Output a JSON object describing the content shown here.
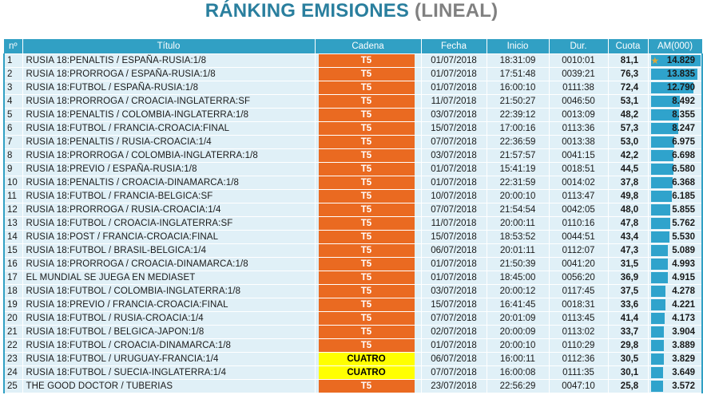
{
  "title": {
    "main": "RÁNKING EMISIONES",
    "sub": "(LINEAL)",
    "main_color": "#2a7f9e",
    "sub_color": "#808080"
  },
  "colors": {
    "header_bg": "#31a0c4",
    "row_bg": "#e0f0f7",
    "t5": "#ea6a21",
    "cuatro": "#ffff00",
    "bar": "#2fa3cc"
  },
  "columns": {
    "num": "nº",
    "titulo": "Título",
    "cadena": "Cadena",
    "fecha": "Fecha",
    "inicio": "Inicio",
    "dur": "Dur.",
    "cuota": "Cuota",
    "am": "AM(000)"
  },
  "rows": [
    {
      "n": "1",
      "titulo": "RUSIA 18:PENALTIS / ESPAÑA-RUSIA:1/8",
      "cadena": "T5",
      "fecha": "01/07/2018",
      "inicio": "18:31:09",
      "dur": "0010:01",
      "cuota": "81,1",
      "am": "14.829",
      "am_value": 14829,
      "icon": "star-icon"
    },
    {
      "n": "2",
      "titulo": "RUSIA 18:PRORROGA / ESPAÑA-RUSIA:1/8",
      "cadena": "T5",
      "fecha": "01/07/2018",
      "inicio": "17:51:48",
      "dur": "0039:21",
      "cuota": "76,3",
      "am": "13.835",
      "am_value": 13835
    },
    {
      "n": "3",
      "titulo": "RUSIA 18:FUTBOL / ESPAÑA-RUSIA:1/8",
      "cadena": "T5",
      "fecha": "01/07/2018",
      "inicio": "16:00:10",
      "dur": "0111:38",
      "cuota": "72,4",
      "am": "12.790",
      "am_value": 12790
    },
    {
      "n": "4",
      "titulo": "RUSIA 18:PRORROGA / CROACIA-INGLATERRA:SF",
      "cadena": "T5",
      "fecha": "11/07/2018",
      "inicio": "21:50:27",
      "dur": "0046:50",
      "cuota": "53,1",
      "am": "8.492",
      "am_value": 8492
    },
    {
      "n": "5",
      "titulo": "RUSIA 18:PENALTIS / COLOMBIA-INGLATERRA:1/8",
      "cadena": "T5",
      "fecha": "03/07/2018",
      "inicio": "22:39:12",
      "dur": "0013:09",
      "cuota": "48,2",
      "am": "8.355",
      "am_value": 8355
    },
    {
      "n": "6",
      "titulo": "RUSIA 18:FUTBOL / FRANCIA-CROACIA:FINAL",
      "cadena": "T5",
      "fecha": "15/07/2018",
      "inicio": "17:00:16",
      "dur": "0113:36",
      "cuota": "57,3",
      "am": "8.247",
      "am_value": 8247
    },
    {
      "n": "7",
      "titulo": "RUSIA 18:PENALTIS / RUSIA-CROACIA:1/4",
      "cadena": "T5",
      "fecha": "07/07/2018",
      "inicio": "22:36:59",
      "dur": "0013:38",
      "cuota": "53,0",
      "am": "6.975",
      "am_value": 6975
    },
    {
      "n": "8",
      "titulo": "RUSIA 18:PRORROGA / COLOMBIA-INGLATERRA:1/8",
      "cadena": "T5",
      "fecha": "03/07/2018",
      "inicio": "21:57:57",
      "dur": "0041:15",
      "cuota": "42,2",
      "am": "6.698",
      "am_value": 6698
    },
    {
      "n": "9",
      "titulo": "RUSIA 18:PREVIO / ESPAÑA-RUSIA:1/8",
      "cadena": "T5",
      "fecha": "01/07/2018",
      "inicio": "15:41:19",
      "dur": "0018:51",
      "cuota": "44,5",
      "am": "6.580",
      "am_value": 6580
    },
    {
      "n": "10",
      "titulo": "RUSIA 18:PENALTIS / CROACIA-DINAMARCA:1/8",
      "cadena": "T5",
      "fecha": "01/07/2018",
      "inicio": "22:31:59",
      "dur": "0014:02",
      "cuota": "37,8",
      "am": "6.368",
      "am_value": 6368
    },
    {
      "n": "11",
      "titulo": "RUSIA 18:FUTBOL / FRANCIA-BELGICA:SF",
      "cadena": "T5",
      "fecha": "10/07/2018",
      "inicio": "20:00:10",
      "dur": "0113:47",
      "cuota": "49,8",
      "am": "6.185",
      "am_value": 6185
    },
    {
      "n": "12",
      "titulo": "RUSIA 18:PRORROGA / RUSIA-CROACIA:1/4",
      "cadena": "T5",
      "fecha": "07/07/2018",
      "inicio": "21:54:54",
      "dur": "0042:05",
      "cuota": "48,0",
      "am": "5.855",
      "am_value": 5855
    },
    {
      "n": "13",
      "titulo": "RUSIA 18:FUTBOL / CROACIA-INGLATERRA:SF",
      "cadena": "T5",
      "fecha": "11/07/2018",
      "inicio": "20:00:11",
      "dur": "0110:16",
      "cuota": "47,8",
      "am": "5.762",
      "am_value": 5762
    },
    {
      "n": "14",
      "titulo": "RUSIA 18:POST / FRANCIA-CROACIA:FINAL",
      "cadena": "T5",
      "fecha": "15/07/2018",
      "inicio": "18:53:52",
      "dur": "0044:51",
      "cuota": "43,4",
      "am": "5.530",
      "am_value": 5530
    },
    {
      "n": "15",
      "titulo": "RUSIA 18:FUTBOL / BRASIL-BELGICA:1/4",
      "cadena": "T5",
      "fecha": "06/07/2018",
      "inicio": "20:01:11",
      "dur": "0112:07",
      "cuota": "47,3",
      "am": "5.089",
      "am_value": 5089
    },
    {
      "n": "16",
      "titulo": "RUSIA 18:PRORROGA / CROACIA-DINAMARCA:1/8",
      "cadena": "T5",
      "fecha": "01/07/2018",
      "inicio": "21:50:39",
      "dur": "0041:20",
      "cuota": "31,5",
      "am": "4.993",
      "am_value": 4993
    },
    {
      "n": "17",
      "titulo": "EL MUNDIAL SE JUEGA EN MEDIASET",
      "cadena": "T5",
      "fecha": "01/07/2018",
      "inicio": "18:45:00",
      "dur": "0056:20",
      "cuota": "36,9",
      "am": "4.915",
      "am_value": 4915
    },
    {
      "n": "18",
      "titulo": "RUSIA 18:FUTBOL / COLOMBIA-INGLATERRA:1/8",
      "cadena": "T5",
      "fecha": "03/07/2018",
      "inicio": "20:00:12",
      "dur": "0117:45",
      "cuota": "37,5",
      "am": "4.278",
      "am_value": 4278
    },
    {
      "n": "19",
      "titulo": "RUSIA 18:PREVIO / FRANCIA-CROACIA:FINAL",
      "cadena": "T5",
      "fecha": "15/07/2018",
      "inicio": "16:41:45",
      "dur": "0018:31",
      "cuota": "33,6",
      "am": "4.221",
      "am_value": 4221
    },
    {
      "n": "20",
      "titulo": "RUSIA 18:FUTBOL / RUSIA-CROACIA:1/4",
      "cadena": "T5",
      "fecha": "07/07/2018",
      "inicio": "20:01:09",
      "dur": "0113:45",
      "cuota": "41,4",
      "am": "4.173",
      "am_value": 4173
    },
    {
      "n": "21",
      "titulo": "RUSIA 18:FUTBOL / BELGICA-JAPON:1/8",
      "cadena": "T5",
      "fecha": "02/07/2018",
      "inicio": "20:00:09",
      "dur": "0113:02",
      "cuota": "33,7",
      "am": "3.904",
      "am_value": 3904
    },
    {
      "n": "22",
      "titulo": "RUSIA 18:FUTBOL / CROACIA-DINAMARCA:1/8",
      "cadena": "T5",
      "fecha": "01/07/2018",
      "inicio": "20:00:10",
      "dur": "0110:29",
      "cuota": "29,8",
      "am": "3.889",
      "am_value": 3889
    },
    {
      "n": "23",
      "titulo": "RUSIA 18:FUTBOL / URUGUAY-FRANCIA:1/4",
      "cadena": "CUATRO",
      "fecha": "06/07/2018",
      "inicio": "16:00:11",
      "dur": "0112:36",
      "cuota": "30,5",
      "am": "3.829",
      "am_value": 3829
    },
    {
      "n": "24",
      "titulo": "RUSIA 18:FUTBOL / SUECIA-INGLATERRA:1/4",
      "cadena": "CUATRO",
      "fecha": "07/07/2018",
      "inicio": "16:00:08",
      "dur": "0111:35",
      "cuota": "30,1",
      "am": "3.649",
      "am_value": 3649
    },
    {
      "n": "25",
      "titulo": "THE GOOD DOCTOR / TUBERIAS",
      "cadena": "T5",
      "fecha": "23/07/2018",
      "inicio": "22:56:29",
      "dur": "0047:10",
      "cuota": "25,8",
      "am": "3.572",
      "am_value": 3572
    }
  ]
}
